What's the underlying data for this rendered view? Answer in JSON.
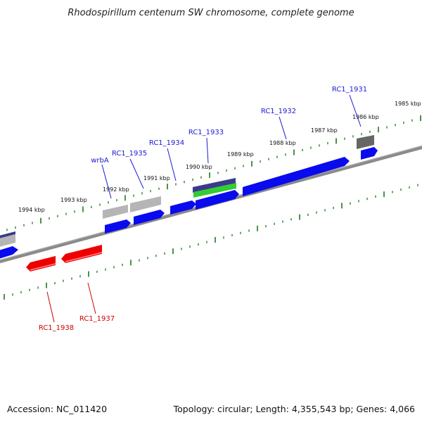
{
  "title": "Rhodospirillum centenum SW chromosome, complete genome",
  "footer": {
    "accession": "Accession: NC_011420",
    "summary": "Topology: circular; Length: 4,355,543 bp; Genes: 4,066"
  },
  "kbp_labels": [
    "1985 kbp",
    "1986 kbp",
    "1987 kbp",
    "1988 kbp",
    "1989 kbp",
    "1990 kbp",
    "1991 kbp",
    "1992 kbp",
    "1993 kbp",
    "1994 kbp"
  ],
  "gene_labels": {
    "rc1_1931": "RC1_1931",
    "rc1_1932": "RC1_1932",
    "rc1_1933": "RC1_1933",
    "rc1_1934": "RC1_1934",
    "rc1_1935": "RC1_1935",
    "wrba": "wrbA",
    "rc1_1937": "RC1_1937",
    "rc1_1938": "RC1_1938"
  },
  "colors": {
    "forward_gene": "#0a0aee",
    "reverse_gene": "#ee0000",
    "pseudo_light": "#b5b5b5",
    "pseudo_dark": "#666666",
    "feature_purple": "#3a3a8c",
    "feature_green": "#33cc33",
    "backbone": "#8a8a8a",
    "ticks": "#1a7a1a",
    "label_forward": "#1a1ad4",
    "label_reverse": "#cc0000"
  }
}
